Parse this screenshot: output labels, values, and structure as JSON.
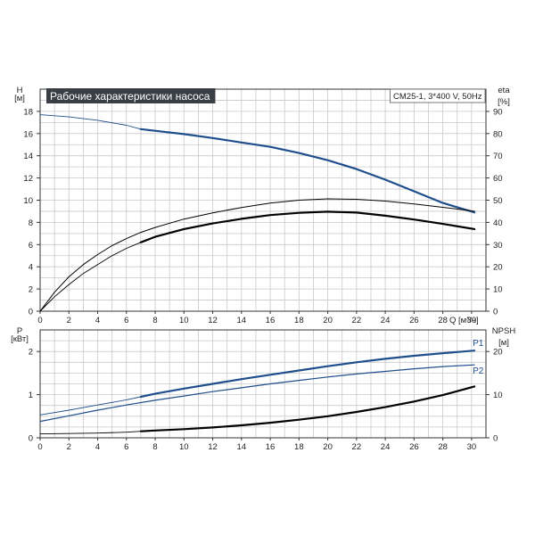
{
  "chart_data": [
    {
      "type": "line",
      "title": "Рабочие характеристики насоса",
      "subtitle": "CM25-1, 3*400 V, 50Hz",
      "x": {
        "label": "Q [м³/ч]",
        "range": [
          0,
          31
        ],
        "ticks": [
          "0",
          "2",
          "4",
          "6",
          "8",
          "10",
          "12",
          "14",
          "16",
          "18",
          "20",
          "22",
          "24",
          "26",
          "28",
          "30"
        ]
      },
      "y_left": {
        "label": "H",
        "unit": "[м]",
        "range": [
          0,
          20
        ],
        "ticks": [
          "0",
          "2",
          "4",
          "6",
          "8",
          "10",
          "12",
          "14",
          "16",
          "18"
        ]
      },
      "y_right": {
        "label": "eta",
        "unit": "[%]",
        "range": [
          0,
          100
        ],
        "ticks": [
          "0",
          "10",
          "20",
          "30",
          "40",
          "50",
          "60",
          "70",
          "80",
          "90"
        ]
      },
      "grid": true,
      "series": [
        {
          "name": "",
          "axis": "left",
          "color": "#1f4e8c",
          "width": 2.2,
          "thin_to_x": 7,
          "points": [
            [
              0,
              17.7
            ],
            [
              2,
              17.5
            ],
            [
              4,
              17.2
            ],
            [
              6,
              16.75
            ],
            [
              7,
              16.4
            ],
            [
              8,
              16.25
            ],
            [
              10,
              15.95
            ],
            [
              12,
              15.6
            ],
            [
              14,
              15.2
            ],
            [
              16,
              14.8
            ],
            [
              18,
              14.25
            ],
            [
              20,
              13.6
            ],
            [
              22,
              12.8
            ],
            [
              24,
              11.85
            ],
            [
              26,
              10.8
            ],
            [
              28,
              9.75
            ],
            [
              30.2,
              8.9
            ]
          ]
        },
        {
          "name": "",
          "axis": "right",
          "color": "#000000",
          "width": 1.0,
          "thin_to_x": 0,
          "points": [
            [
              0,
              0
            ],
            [
              1,
              8.5
            ],
            [
              2,
              15.5
            ],
            [
              3,
              21
            ],
            [
              4,
              25.5
            ],
            [
              5,
              29.5
            ],
            [
              6,
              32.7
            ],
            [
              7,
              35.5
            ],
            [
              8,
              37.7
            ],
            [
              10,
              41.5
            ],
            [
              12,
              44.3
            ],
            [
              14,
              46.7
            ],
            [
              16,
              48.7
            ],
            [
              18,
              50
            ],
            [
              20,
              50.6
            ],
            [
              22,
              50.4
            ],
            [
              24,
              49.6
            ],
            [
              26,
              48.3
            ],
            [
              28,
              46.8
            ],
            [
              30.2,
              45
            ]
          ]
        },
        {
          "name": "",
          "axis": "right",
          "color": "#000000",
          "width": 2.2,
          "thin_to_x": 7,
          "points": [
            [
              0,
              0
            ],
            [
              1,
              6.5
            ],
            [
              2,
              12
            ],
            [
              3,
              17
            ],
            [
              4,
              21
            ],
            [
              5,
              25
            ],
            [
              6,
              28.3
            ],
            [
              7,
              31
            ],
            [
              8,
              33.5
            ],
            [
              10,
              37
            ],
            [
              12,
              39.5
            ],
            [
              14,
              41.6
            ],
            [
              16,
              43.3
            ],
            [
              18,
              44.3
            ],
            [
              20,
              44.8
            ],
            [
              22,
              44.4
            ],
            [
              24,
              43
            ],
            [
              26,
              41.3
            ],
            [
              28,
              39.3
            ],
            [
              30.2,
              37
            ]
          ]
        }
      ]
    },
    {
      "type": "line",
      "x": {
        "label": "",
        "range": [
          0,
          31
        ],
        "ticks": [
          "0",
          "2",
          "4",
          "6",
          "8",
          "10",
          "12",
          "14",
          "16",
          "18",
          "20",
          "22",
          "24",
          "26",
          "28",
          "30"
        ]
      },
      "y_left": {
        "label": "P",
        "unit": "[кВт]",
        "range": [
          0,
          2.5
        ],
        "ticks": [
          "0",
          "1",
          "2"
        ]
      },
      "y_right": {
        "label": "NPSH",
        "unit": "[м]",
        "range": [
          0,
          25
        ],
        "ticks": [
          "0",
          "10",
          "20"
        ]
      },
      "grid": true,
      "series": [
        {
          "name": "P1",
          "axis": "left",
          "color": "#1f4e8c",
          "width": 2.2,
          "thin_to_x": 7,
          "points": [
            [
              0,
              0.53
            ],
            [
              2,
              0.64
            ],
            [
              4,
              0.76
            ],
            [
              6,
              0.88
            ],
            [
              7,
              0.95
            ],
            [
              8,
              1.02
            ],
            [
              10,
              1.14
            ],
            [
              12,
              1.25
            ],
            [
              14,
              1.36
            ],
            [
              16,
              1.46
            ],
            [
              18,
              1.56
            ],
            [
              20,
              1.66
            ],
            [
              22,
              1.75
            ],
            [
              24,
              1.83
            ],
            [
              26,
              1.9
            ],
            [
              28,
              1.96
            ],
            [
              30.2,
              2.02
            ]
          ]
        },
        {
          "name": "P2",
          "axis": "left",
          "color": "#1f4e8c",
          "width": 1.2,
          "thin_to_x": 0,
          "points": [
            [
              0,
              0.38
            ],
            [
              2,
              0.51
            ],
            [
              4,
              0.64
            ],
            [
              6,
              0.76
            ],
            [
              8,
              0.87
            ],
            [
              10,
              0.97
            ],
            [
              12,
              1.07
            ],
            [
              14,
              1.16
            ],
            [
              16,
              1.25
            ],
            [
              18,
              1.33
            ],
            [
              20,
              1.41
            ],
            [
              22,
              1.48
            ],
            [
              24,
              1.54
            ],
            [
              26,
              1.6
            ],
            [
              28,
              1.65
            ],
            [
              30.2,
              1.69
            ]
          ]
        },
        {
          "name": "",
          "axis": "right",
          "color": "#000000",
          "width": 2.2,
          "thin_to_x": 7,
          "points": [
            [
              0,
              0.9
            ],
            [
              2,
              1.0
            ],
            [
              4,
              1.1
            ],
            [
              6,
              1.3
            ],
            [
              7,
              1.5
            ],
            [
              8,
              1.7
            ],
            [
              10,
              2.0
            ],
            [
              12,
              2.4
            ],
            [
              14,
              2.9
            ],
            [
              16,
              3.5
            ],
            [
              18,
              4.2
            ],
            [
              20,
              5.0
            ],
            [
              22,
              6.0
            ],
            [
              24,
              7.1
            ],
            [
              26,
              8.4
            ],
            [
              28,
              9.9
            ],
            [
              30.2,
              11.9
            ]
          ]
        }
      ]
    }
  ]
}
